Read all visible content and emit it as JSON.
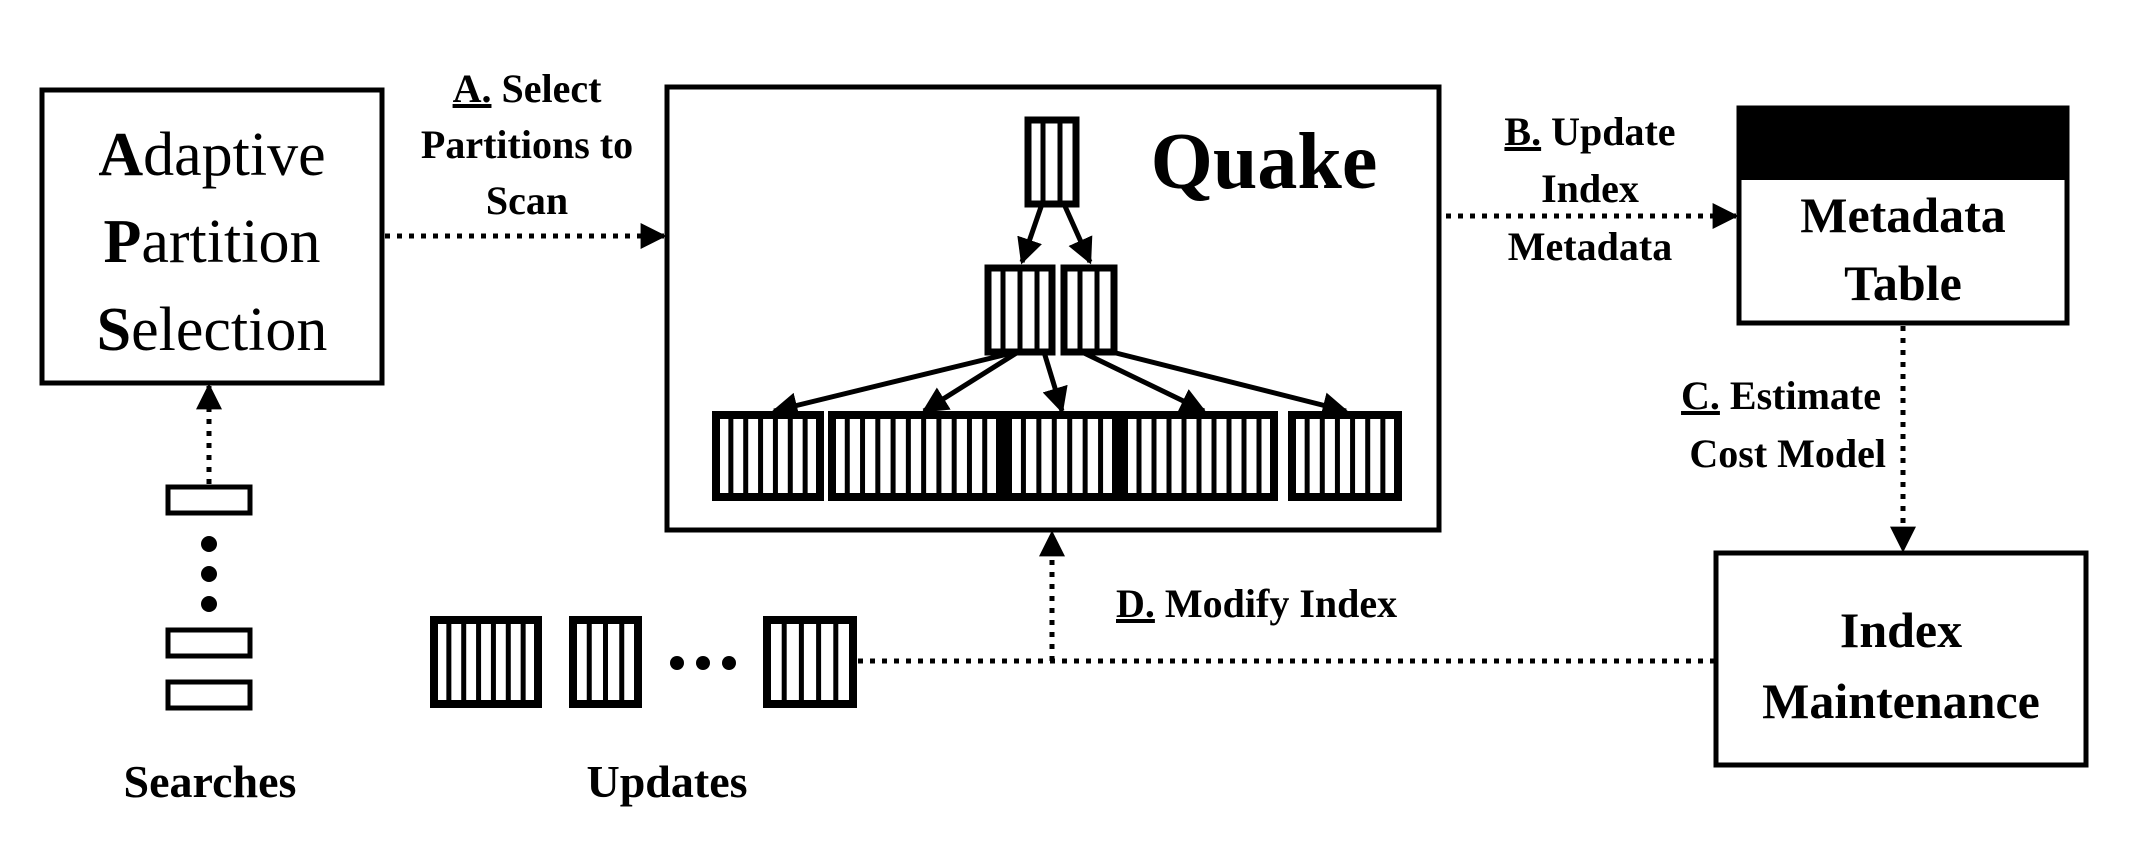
{
  "adaptive_partition_selection": {
    "line1": {
      "initial": "A",
      "rest": "daptive"
    },
    "line2": {
      "initial": "P",
      "rest": "artition"
    },
    "line3": {
      "initial": "S",
      "rest": "election"
    }
  },
  "quake": {
    "title": "Quake"
  },
  "metadata_table": {
    "line1": "Metadata",
    "line2": "Table"
  },
  "index_maintenance": {
    "line1": "Index",
    "line2": "Maintenance"
  },
  "steps": {
    "a": {
      "letter": "A.",
      "line1": "Select",
      "line2": "Partitions to",
      "line3": "Scan"
    },
    "b": {
      "letter": "B.",
      "line1": "Update",
      "line2": "Index",
      "line3": "Metadata"
    },
    "c": {
      "letter": "C.",
      "line1": "Estimate",
      "line2": "Cost Model"
    },
    "d": {
      "letter": "D.",
      "line1": "Modify Index"
    }
  },
  "labels": {
    "searches": "Searches",
    "updates": "Updates"
  }
}
